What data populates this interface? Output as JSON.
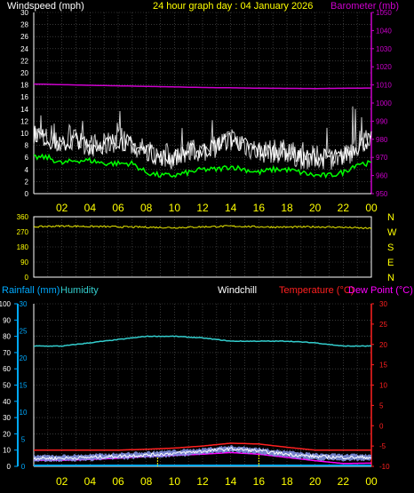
{
  "header": {
    "windspeed_label": "Windspeed (mph)",
    "title": "24 hour graph day : 04 January 2026",
    "barometer_label": "Barometer (mb)"
  },
  "lower_header": {
    "rainfall_label": "Rainfall (mm)",
    "humidity_label": "Humidity",
    "windchill_label": "Windchill",
    "temperature_label": "Temperature (°C)",
    "dewpoint_label": "Dew Point (°C)"
  },
  "colors": {
    "background": "#000000",
    "grid": "#5a5a5a",
    "windspeed": "#ffffff",
    "gust": "#c8c8c8",
    "average": "#00ff00",
    "barometer": "#cc00cc",
    "direction": "#e6e600",
    "rainfall": "#00aaff",
    "humidity": "#33cccc",
    "windchill": "#ffffff",
    "temperature": "#ff2020",
    "dewpoint": "#ff00ff",
    "title": "#ffff00"
  },
  "chart_data": [
    {
      "type": "line",
      "title": "24 hour graph day : 04 January 2026",
      "ylabel": "Windspeed (mph)",
      "y2label": "Barometer (mb)",
      "ylim": [
        0,
        30
      ],
      "y2lim": [
        950,
        1050
      ],
      "y_ticks": [
        "0",
        "2",
        "4",
        "6",
        "8",
        "10",
        "12",
        "14",
        "16",
        "18",
        "20",
        "22",
        "24",
        "26",
        "28",
        "30"
      ],
      "y2_ticks": [
        "950",
        "960",
        "970",
        "980",
        "990",
        "1000",
        "1010",
        "1020",
        "1030",
        "1040",
        "1050"
      ],
      "x_ticks": [
        "02",
        "04",
        "06",
        "08",
        "10",
        "12",
        "14",
        "16",
        "18",
        "20",
        "22",
        "00"
      ],
      "xlim_hours": [
        0,
        24
      ],
      "series": [
        {
          "name": "Windspeed (mph)",
          "x": [
            0,
            1,
            2,
            3,
            4,
            5,
            6,
            7,
            8,
            9,
            10,
            11,
            12,
            13,
            14,
            15,
            16,
            17,
            18,
            19,
            20,
            21,
            22,
            23,
            24
          ],
          "values": [
            10,
            9,
            8,
            9,
            8,
            8,
            9,
            8,
            7,
            6,
            6,
            7,
            7,
            8,
            9,
            8,
            7,
            7,
            7,
            6,
            6,
            6,
            6,
            8,
            9
          ]
        },
        {
          "name": "Gust",
          "x": [
            0,
            1,
            2,
            3,
            4,
            5,
            6,
            7,
            8,
            9,
            10,
            11,
            12,
            13,
            14,
            15,
            16,
            17,
            18,
            19,
            20,
            21,
            22,
            23,
            24
          ],
          "values": [
            13,
            12,
            11,
            12,
            11,
            12,
            12,
            11,
            10,
            9,
            9,
            10,
            10,
            11,
            13,
            11,
            10,
            10,
            10,
            9,
            9,
            9,
            9,
            13,
            15
          ]
        },
        {
          "name": "Average",
          "x": [
            0,
            1,
            2,
            3,
            4,
            5,
            6,
            7,
            8,
            9,
            10,
            11,
            12,
            13,
            14,
            15,
            16,
            17,
            18,
            19,
            20,
            21,
            22,
            23,
            24
          ],
          "values": [
            6,
            6,
            5,
            5.5,
            5.5,
            5,
            5,
            5,
            3.5,
            3,
            3,
            3.5,
            4,
            4,
            4.5,
            4,
            3.5,
            4,
            4,
            3.5,
            3,
            3,
            3.5,
            5,
            5
          ]
        },
        {
          "name": "Barometer (mb)",
          "axis": "y2",
          "x": [
            0,
            4,
            8,
            12,
            16,
            20,
            24
          ],
          "values": [
            1010.5,
            1009.8,
            1009.2,
            1008.6,
            1008.2,
            1008.0,
            1008.3
          ]
        }
      ]
    },
    {
      "type": "line",
      "ylabel": "Wind direction",
      "ylim": [
        0,
        360
      ],
      "y_ticks": [
        "0",
        "90",
        "180",
        "270",
        "360"
      ],
      "y2_ticks": [
        "N",
        "W",
        "S",
        "E",
        "N"
      ],
      "series": [
        {
          "name": "Direction",
          "x": [
            0,
            2,
            4,
            6,
            8,
            10,
            12,
            14,
            16,
            18,
            20,
            22,
            24
          ],
          "values": [
            300,
            305,
            302,
            300,
            298,
            295,
            300,
            304,
            300,
            298,
            300,
            297,
            290
          ]
        }
      ]
    },
    {
      "type": "line",
      "ylabel": "Rainfall (mm)",
      "ylim": [
        0,
        100
      ],
      "y_ticks": [
        "0",
        "10",
        "20",
        "30",
        "40",
        "50",
        "60",
        "70",
        "80",
        "90",
        "100"
      ],
      "rain_ticks": [
        "0",
        "5",
        "10",
        "15",
        "20",
        "25",
        "30"
      ],
      "y2_ticks": [
        "-10",
        "-5",
        "0",
        "5",
        "10",
        "15",
        "20",
        "25",
        "30"
      ],
      "y2lim": [
        -10,
        30
      ],
      "x_ticks": [
        "02",
        "04",
        "06",
        "08",
        "10",
        "12",
        "14",
        "16",
        "18",
        "20",
        "22",
        "00"
      ],
      "series": [
        {
          "name": "Humidity",
          "x": [
            0,
            2,
            4,
            6,
            8,
            9,
            10,
            12,
            13,
            14,
            16,
            18,
            20,
            21,
            22,
            24
          ],
          "values": [
            74,
            74,
            76,
            78,
            80,
            80,
            80,
            79,
            78,
            77,
            77,
            77,
            76,
            75,
            74,
            74
          ]
        },
        {
          "name": "Temperature (°C)",
          "axis": "y2",
          "x": [
            0,
            2,
            4,
            6,
            8,
            10,
            12,
            14,
            16,
            18,
            20,
            22,
            24
          ],
          "values": [
            -6,
            -6,
            -6,
            -6,
            -5.8,
            -5.5,
            -5,
            -4.3,
            -4.5,
            -5.3,
            -6,
            -6,
            -6
          ]
        },
        {
          "name": "Windchill",
          "axis": "y2",
          "x": [
            0,
            2,
            4,
            6,
            8,
            10,
            12,
            14,
            16,
            18,
            20,
            22,
            24
          ],
          "values": [
            -8,
            -8,
            -7.8,
            -7.5,
            -7.2,
            -6.8,
            -6.3,
            -5.7,
            -6.2,
            -7,
            -7.6,
            -7.8,
            -7.8
          ]
        },
        {
          "name": "Dew Point (°C)",
          "axis": "y2",
          "x": [
            0,
            2,
            4,
            6,
            8,
            10,
            12,
            14,
            16,
            18,
            20,
            22,
            24
          ],
          "values": [
            -8.5,
            -8.5,
            -8.3,
            -8,
            -7.6,
            -7.3,
            -7,
            -6.6,
            -7,
            -7.8,
            -8.6,
            -9.3,
            -9.2
          ]
        },
        {
          "name": "Rainfall (mm)",
          "x": [
            0,
            24
          ],
          "values": [
            0,
            0
          ]
        }
      ]
    }
  ]
}
